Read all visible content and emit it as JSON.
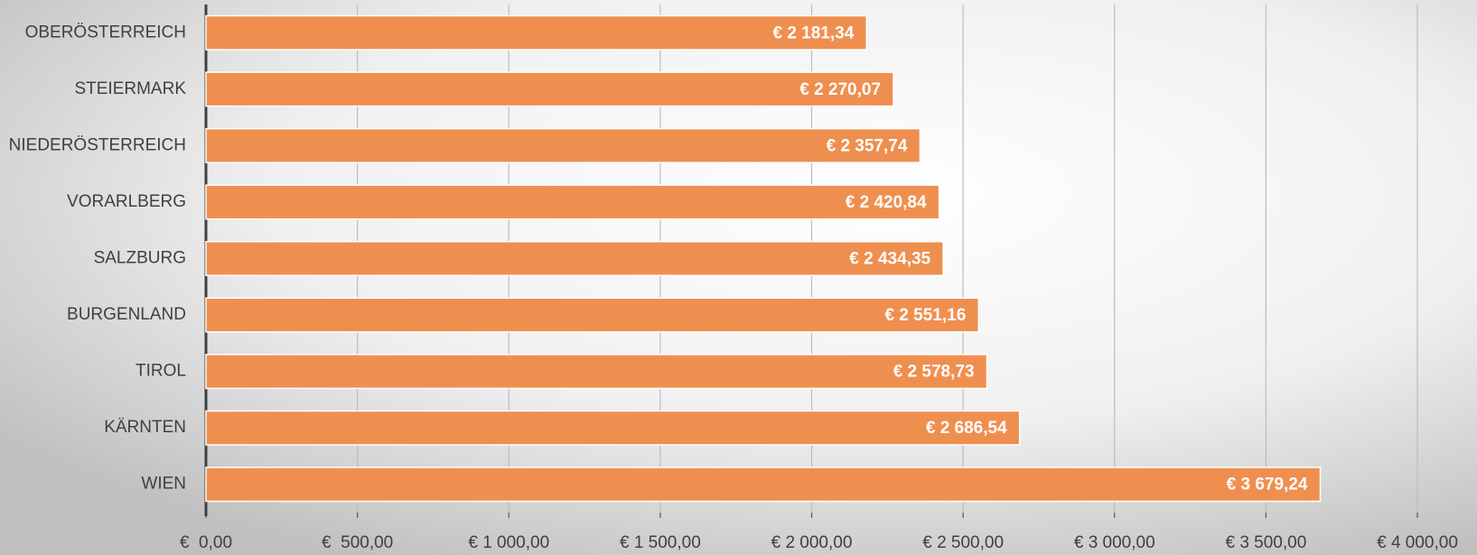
{
  "chart_data": {
    "type": "bar",
    "orientation": "horizontal",
    "categories": [
      "OBERÖSTERREICH",
      "STEIERMARK",
      "NIEDERÖSTERREICH",
      "VORARLBERG",
      "SALZBURG",
      "BURGENLAND",
      "TIROL",
      "KÄRNTEN",
      "WIEN"
    ],
    "values": [
      2181.34,
      2270.07,
      2357.74,
      2420.84,
      2434.35,
      2551.16,
      2578.73,
      2686.54,
      3679.24
    ],
    "value_labels": [
      "€ 2 181,34",
      "€ 2 270,07",
      "€ 2 357,74",
      "€ 2 420,84",
      "€ 2 434,35",
      "€ 2 551,16",
      "€ 2 578,73",
      "€ 2 686,54",
      "€ 3 679,24"
    ],
    "color": "#ef8f4f",
    "xlim": [
      0,
      4000
    ],
    "xticks": [
      {
        "value": 0,
        "label": "€  0,00"
      },
      {
        "value": 500,
        "label": "€  500,00"
      },
      {
        "value": 1000,
        "label": "€ 1 000,00"
      },
      {
        "value": 1500,
        "label": "€ 1 500,00"
      },
      {
        "value": 2000,
        "label": "€ 2 000,00"
      },
      {
        "value": 2500,
        "label": "€ 2 500,00"
      },
      {
        "value": 3000,
        "label": "€ 3 000,00"
      },
      {
        "value": 3500,
        "label": "€ 3 500,00"
      },
      {
        "value": 4000,
        "label": "€ 4 000,00"
      }
    ],
    "grid": true
  }
}
